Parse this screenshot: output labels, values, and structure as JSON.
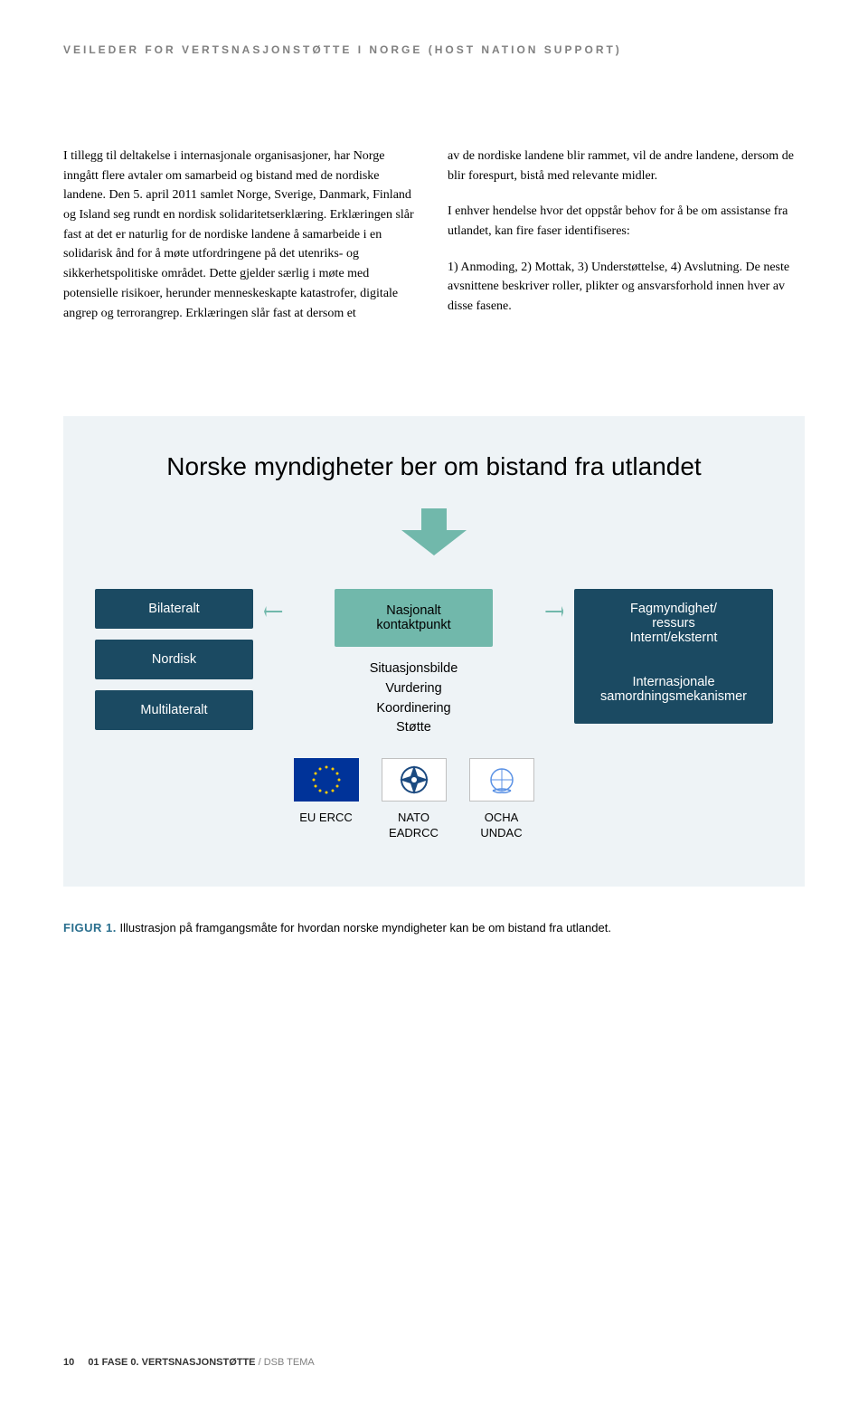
{
  "header": "VEILEDER FOR VERTSNASJONSTØTTE I NORGE (HOST NATION SUPPORT)",
  "body": {
    "left": "I tillegg til deltakelse i internasjonale organisasjoner, har Norge inngått flere avtaler om samarbeid og bistand med de nordiske landene. Den 5. april 2011 samlet Norge, Sverige, Danmark, Finland og Island seg rundt en nordisk solidaritetserklæring. Erklæringen slår fast at det er naturlig for de nordiske landene å samarbeide i en solidarisk ånd for å møte utfordringene på det utenriks- og sikkerhetspolitiske området. Dette gjelder særlig i møte med potensielle risikoer, herunder menneskeskapte katastrofer, digitale angrep og terrorangrep. Erklæringen slår fast at dersom et",
    "right_p1": "av de nordiske landene blir rammet, vil de andre landene, dersom de blir forespurt, bistå med relevante midler.",
    "right_p2": "I enhver hendelse hvor det oppstår behov for å be om assistanse fra utlandet, kan fire faser identifiseres:",
    "right_p3": "1) Anmoding, 2) Mottak, 3) Understøttelse, 4) Avslutning. De neste avsnittene beskriver roller, plikter og ansvarsforhold innen hver av disse fasene."
  },
  "diagram": {
    "title": "Norske myndigheter ber om bistand fra utlandet",
    "arrow_color": "#71b8ab",
    "left_boxes": [
      "Bilateralt",
      "Nordisk",
      "Multilateralt"
    ],
    "mid_box": "Nasjonalt\nkontaktpunkt",
    "mid_sub": "Situasjonsbilde\nVurdering\nKoordinering\nStøtte",
    "right_boxes": [
      "Fagmyndighet/\nressurs\nInternt/eksternt",
      "Internasjonale\nsamordningsmekanismer"
    ],
    "flags": [
      {
        "label": "EU ERCC",
        "bg": "#003399",
        "stars": true
      },
      {
        "label": "NATO\nEADRCC",
        "bg": "#ffffff",
        "nato": true
      },
      {
        "label": "OCHA\nUNDAC",
        "bg": "#ffffff",
        "un": true
      }
    ],
    "node_dark_bg": "#1b4a62",
    "node_teal_bg": "#71b8ab",
    "panel_bg": "#eef3f6",
    "line_color": "#71b8ab"
  },
  "caption": {
    "fig": "FIGUR 1.",
    "text": "Illustrasjon på framgangsmåte for hvordan norske myndigheter kan be om bistand fra utlandet."
  },
  "footer": {
    "page": "10",
    "section": "01 FASE 0. VERTSNASJONSTØTTE",
    "suffix": "/ DSB TEMA"
  }
}
